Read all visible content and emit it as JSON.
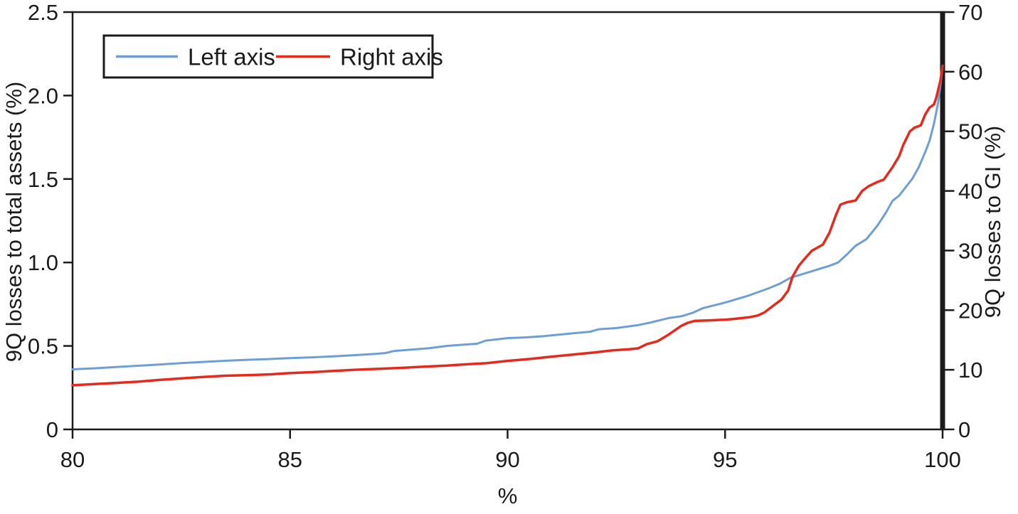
{
  "chart_data": {
    "type": "line",
    "title": "",
    "xlabel": "%",
    "ylabel_left": "9Q losses to total assets (%)",
    "ylabel_right": "9Q losses to GI (%)",
    "x_axis": {
      "range": [
        80,
        100
      ],
      "ticks": [
        "80",
        "85",
        "90",
        "95",
        "100"
      ]
    },
    "left_axis": {
      "range": [
        0,
        2.5
      ],
      "ticks": [
        "0",
        "0.5",
        "1.0",
        "1.5",
        "2.0",
        "2.5"
      ]
    },
    "right_axis": {
      "range": [
        0,
        70
      ],
      "ticks": [
        "0",
        "10",
        "20",
        "30",
        "40",
        "50",
        "60",
        "70"
      ]
    },
    "grid": false,
    "legend": {
      "position": "top-left",
      "entries": [
        {
          "label": "Left axis",
          "color": "#6f9ed6"
        },
        {
          "label": "Right axis",
          "color": "#e5291d"
        }
      ]
    },
    "colors": {
      "axis": "#1c1a1b",
      "blue_series": "#6f9ed6",
      "red_series": "#e5291d"
    },
    "series": [
      {
        "name": "Left axis",
        "axis": "left",
        "color": "#6f9ed6",
        "points": [
          [
            80,
            0.36
          ],
          [
            80.5,
            0.366
          ],
          [
            81,
            0.374
          ],
          [
            81.5,
            0.381
          ],
          [
            82,
            0.389
          ],
          [
            82.5,
            0.397
          ],
          [
            83,
            0.404
          ],
          [
            83.5,
            0.411
          ],
          [
            84,
            0.417
          ],
          [
            84.5,
            0.421
          ],
          [
            85,
            0.427
          ],
          [
            85.5,
            0.432
          ],
          [
            86,
            0.438
          ],
          [
            86.5,
            0.445
          ],
          [
            87,
            0.453
          ],
          [
            87.2,
            0.458
          ],
          [
            87.4,
            0.47
          ],
          [
            87.8,
            0.478
          ],
          [
            88.2,
            0.487
          ],
          [
            88.6,
            0.5
          ],
          [
            89,
            0.508
          ],
          [
            89.3,
            0.513
          ],
          [
            89.5,
            0.532
          ],
          [
            89.8,
            0.541
          ],
          [
            90,
            0.547
          ],
          [
            90.4,
            0.551
          ],
          [
            90.8,
            0.558
          ],
          [
            91.2,
            0.568
          ],
          [
            91.6,
            0.578
          ],
          [
            91.9,
            0.585
          ],
          [
            92.1,
            0.6
          ],
          [
            92.5,
            0.607
          ],
          [
            93,
            0.625
          ],
          [
            93.3,
            0.641
          ],
          [
            93.5,
            0.654
          ],
          [
            93.7,
            0.667
          ],
          [
            94,
            0.678
          ],
          [
            94.25,
            0.698
          ],
          [
            94.5,
            0.727
          ],
          [
            95,
            0.76
          ],
          [
            95.5,
            0.798
          ],
          [
            96,
            0.845
          ],
          [
            96.25,
            0.872
          ],
          [
            96.5,
            0.908
          ],
          [
            96.8,
            0.932
          ],
          [
            97.15,
            0.96
          ],
          [
            97.4,
            0.98
          ],
          [
            97.6,
            1.0
          ],
          [
            97.8,
            1.048
          ],
          [
            98,
            1.1
          ],
          [
            98.25,
            1.14
          ],
          [
            98.5,
            1.22
          ],
          [
            98.7,
            1.3
          ],
          [
            98.85,
            1.37
          ],
          [
            99,
            1.4
          ],
          [
            99.15,
            1.45
          ],
          [
            99.3,
            1.5
          ],
          [
            99.45,
            1.57
          ],
          [
            99.6,
            1.66
          ],
          [
            99.7,
            1.73
          ],
          [
            99.8,
            1.83
          ],
          [
            99.9,
            1.96
          ],
          [
            100,
            2.17
          ]
        ]
      },
      {
        "name": "Right axis",
        "axis": "right",
        "color": "#e5291d",
        "points": [
          [
            80,
            7.4
          ],
          [
            80.5,
            7.6
          ],
          [
            81,
            7.8
          ],
          [
            81.5,
            8.0
          ],
          [
            82,
            8.3
          ],
          [
            82.5,
            8.55
          ],
          [
            83,
            8.8
          ],
          [
            83.5,
            9.0
          ],
          [
            84,
            9.1
          ],
          [
            84.6,
            9.25
          ],
          [
            85,
            9.45
          ],
          [
            85.5,
            9.6
          ],
          [
            86,
            9.8
          ],
          [
            86.5,
            10.0
          ],
          [
            87,
            10.15
          ],
          [
            87.5,
            10.3
          ],
          [
            88,
            10.5
          ],
          [
            88.6,
            10.7
          ],
          [
            89,
            10.9
          ],
          [
            89.5,
            11.1
          ],
          [
            90,
            11.5
          ],
          [
            90.5,
            11.8
          ],
          [
            91,
            12.2
          ],
          [
            91.5,
            12.55
          ],
          [
            92,
            12.9
          ],
          [
            92.4,
            13.25
          ],
          [
            92.8,
            13.45
          ],
          [
            93,
            13.6
          ],
          [
            93.2,
            14.3
          ],
          [
            93.45,
            14.8
          ],
          [
            93.7,
            15.9
          ],
          [
            94,
            17.4
          ],
          [
            94.15,
            17.9
          ],
          [
            94.3,
            18.2
          ],
          [
            94.7,
            18.3
          ],
          [
            95,
            18.4
          ],
          [
            95.3,
            18.6
          ],
          [
            95.55,
            18.8
          ],
          [
            95.75,
            19.1
          ],
          [
            95.9,
            19.6
          ],
          [
            96.1,
            20.7
          ],
          [
            96.3,
            21.8
          ],
          [
            96.45,
            23.3
          ],
          [
            96.55,
            25.6
          ],
          [
            96.7,
            27.5
          ],
          [
            96.85,
            28.8
          ],
          [
            97,
            30
          ],
          [
            97.1,
            30.4
          ],
          [
            97.25,
            31
          ],
          [
            97.4,
            33
          ],
          [
            97.55,
            36
          ],
          [
            97.65,
            37.7
          ],
          [
            97.8,
            38.1
          ],
          [
            98,
            38.4
          ],
          [
            98.15,
            40
          ],
          [
            98.3,
            40.8
          ],
          [
            98.5,
            41.5
          ],
          [
            98.65,
            41.9
          ],
          [
            98.85,
            44
          ],
          [
            99,
            45.8
          ],
          [
            99.1,
            47.8
          ],
          [
            99.25,
            50
          ],
          [
            99.35,
            50.6
          ],
          [
            99.5,
            51
          ],
          [
            99.6,
            52.8
          ],
          [
            99.7,
            54
          ],
          [
            99.8,
            54.5
          ],
          [
            99.85,
            55.5
          ],
          [
            99.95,
            58.5
          ],
          [
            100,
            61
          ]
        ]
      }
    ]
  }
}
